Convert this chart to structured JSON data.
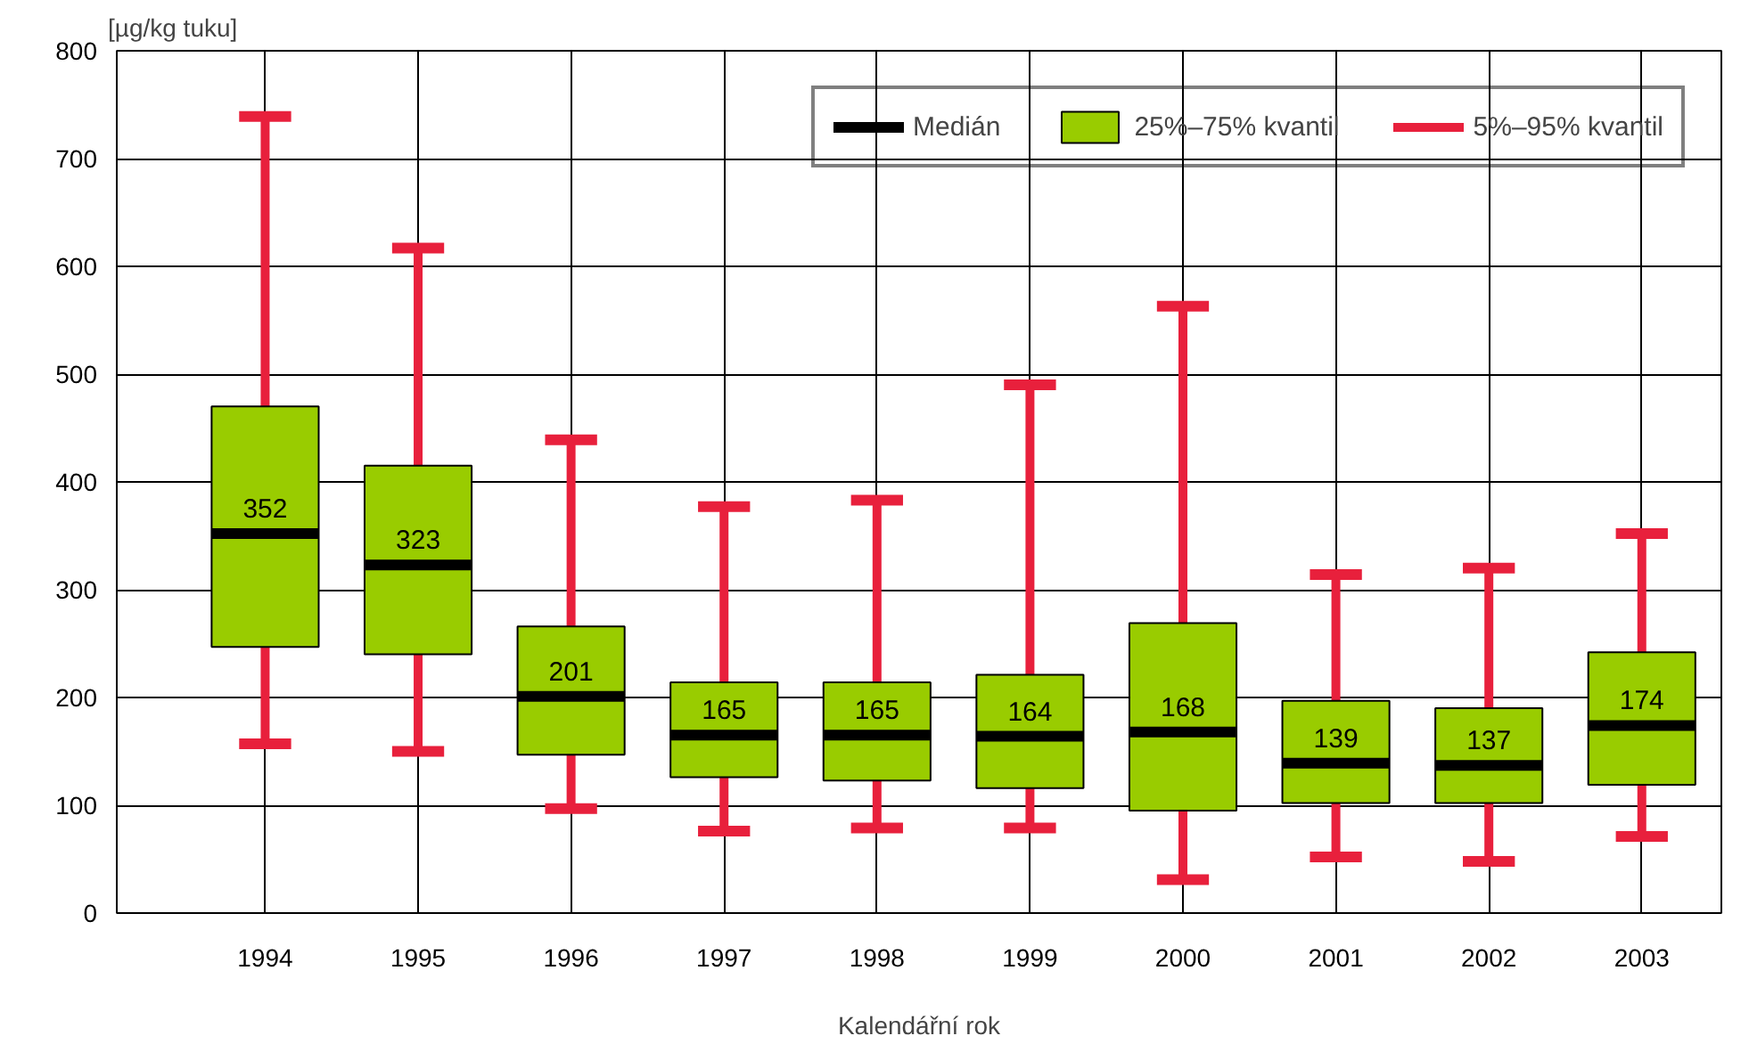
{
  "chart_data": {
    "type": "box",
    "xlabel": "Kalendářní rok",
    "ylabel": "[µg/kg tuku]",
    "categories": [
      "1994",
      "1995",
      "1996",
      "1997",
      "1998",
      "1999",
      "2000",
      "2001",
      "2002",
      "2003"
    ],
    "series": [
      {
        "name": "25%–75% kvantil",
        "color": "#99cc00",
        "boxes": [
          {
            "low": 157,
            "q1": 247,
            "median": 352,
            "q3": 470,
            "high": 739
          },
          {
            "low": 150,
            "q1": 240,
            "median": 323,
            "q3": 415,
            "high": 617
          },
          {
            "low": 97,
            "q1": 147,
            "median": 201,
            "q3": 266,
            "high": 439
          },
          {
            "low": 76,
            "q1": 126,
            "median": 165,
            "q3": 214,
            "high": 377
          },
          {
            "low": 79,
            "q1": 123,
            "median": 165,
            "q3": 214,
            "high": 383
          },
          {
            "low": 79,
            "q1": 116,
            "median": 164,
            "q3": 221,
            "high": 490
          },
          {
            "low": 31,
            "q1": 95,
            "median": 168,
            "q3": 269,
            "high": 563
          },
          {
            "low": 52,
            "q1": 102,
            "median": 139,
            "q3": 197,
            "high": 314
          },
          {
            "low": 48,
            "q1": 102,
            "median": 137,
            "q3": 190,
            "high": 320
          },
          {
            "low": 71,
            "q1": 119,
            "median": 174,
            "q3": 242,
            "high": 352
          }
        ],
        "value_labels": [
          "352",
          "323",
          "201",
          "165",
          "165",
          "164",
          "168",
          "139",
          "137",
          "174"
        ]
      }
    ],
    "ylim": [
      0,
      800
    ],
    "yticks": [
      0,
      100,
      200,
      300,
      400,
      500,
      600,
      700,
      800
    ],
    "grid": true,
    "legend": "top right",
    "annotations": [
      "Medián",
      "5%–95% kvantil"
    ]
  }
}
